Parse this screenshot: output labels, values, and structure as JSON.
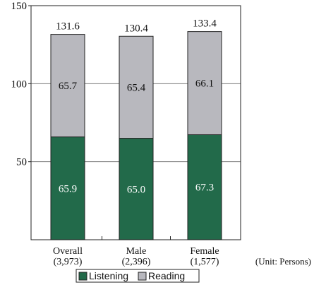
{
  "chart_data": {
    "type": "bar",
    "stacked": true,
    "categories": [
      "Overall",
      "Male",
      "Female"
    ],
    "category_counts": [
      "(3,973)",
      "(2,396)",
      "(1,577)"
    ],
    "series": [
      {
        "name": "Listening",
        "values": [
          65.9,
          65.0,
          67.3
        ],
        "color": "#226a4a",
        "label_color": "#ffffff"
      },
      {
        "name": "Reading",
        "values": [
          65.7,
          65.4,
          66.1
        ],
        "color": "#b8b8be",
        "label_color": "#111111"
      }
    ],
    "totals": [
      131.6,
      130.4,
      133.4
    ],
    "ylim": [
      0,
      150
    ],
    "yticks": [
      50,
      100,
      150
    ],
    "grid": true,
    "unit_note": "(Unit: Persons)",
    "legend_position": "bottom",
    "title": "",
    "xlabel": "",
    "ylabel": ""
  }
}
